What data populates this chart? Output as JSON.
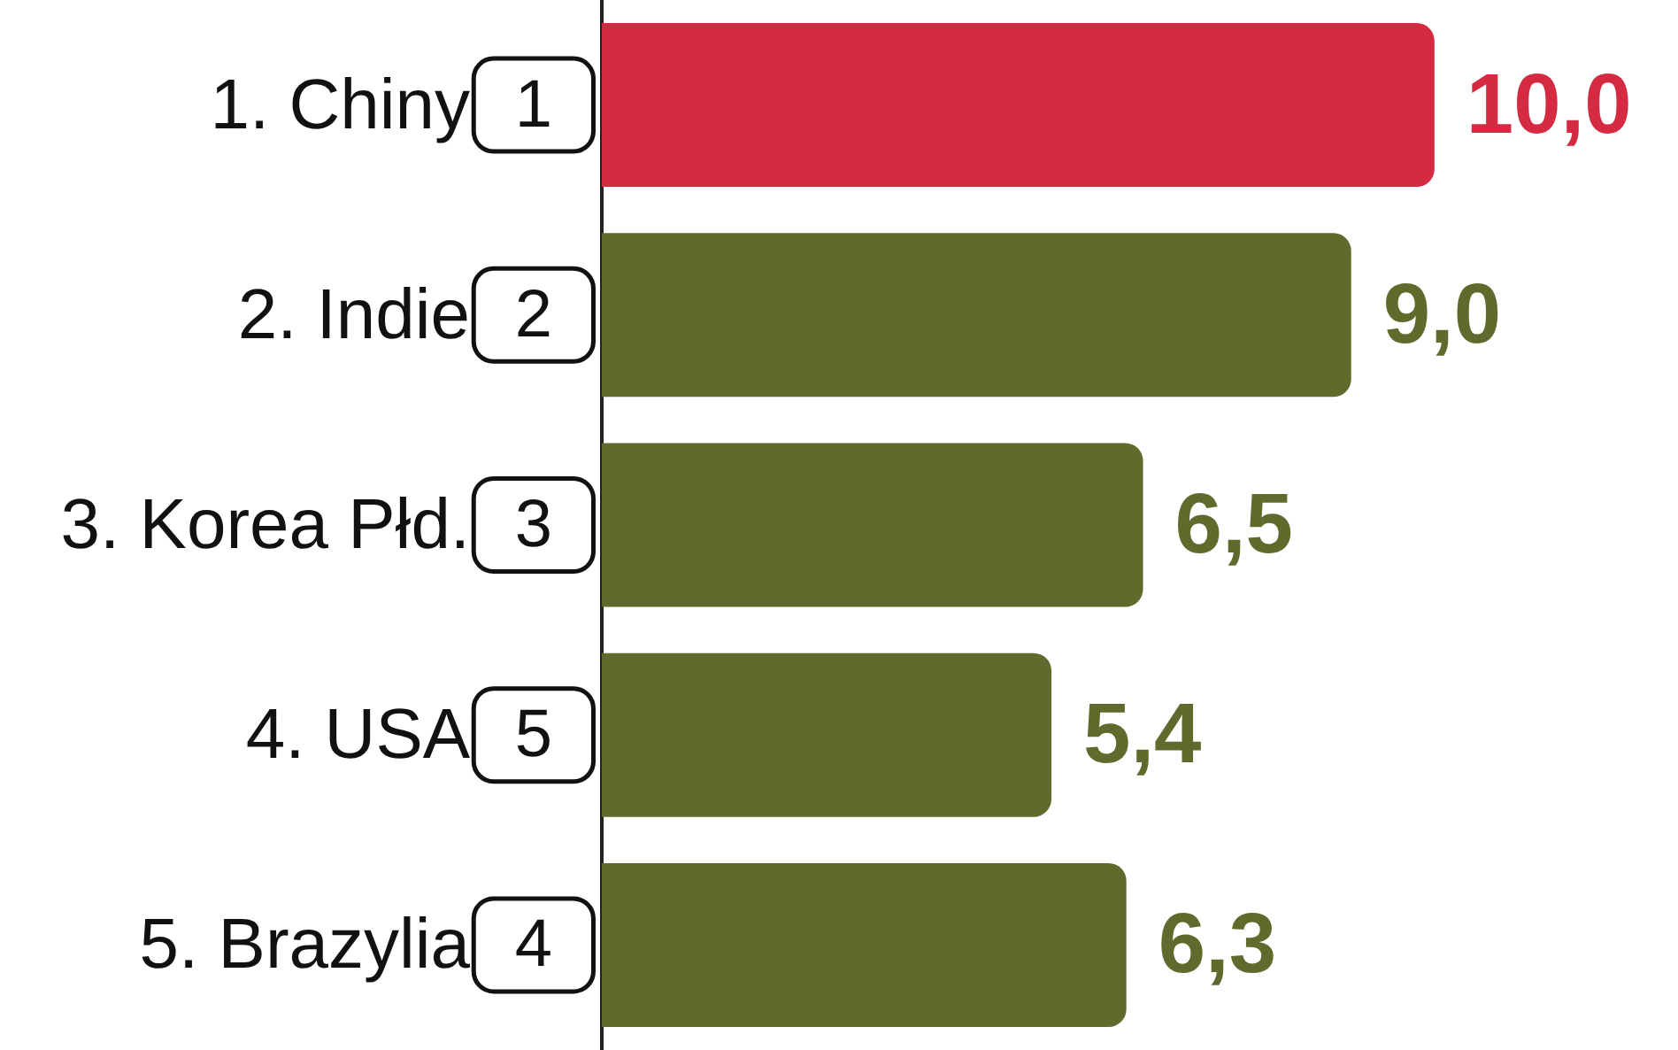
{
  "chart_data": {
    "type": "bar",
    "orientation": "horizontal",
    "categories": [
      "1. Chiny",
      "2. Indie",
      "3. Korea Płd.",
      "4. USA",
      "5. Brazylia"
    ],
    "values": [
      10.0,
      9.0,
      6.5,
      5.4,
      6.3
    ],
    "value_labels": [
      "10,0",
      "9,0",
      "6,5",
      "5,4",
      "6,3"
    ],
    "colors": [
      "#d42a42",
      "#5f6b2c",
      "#5f6b2c",
      "#5f6b2c",
      "#5f6b2c"
    ],
    "annotations": [
      "1",
      "2",
      "3",
      "5",
      "4"
    ]
  }
}
